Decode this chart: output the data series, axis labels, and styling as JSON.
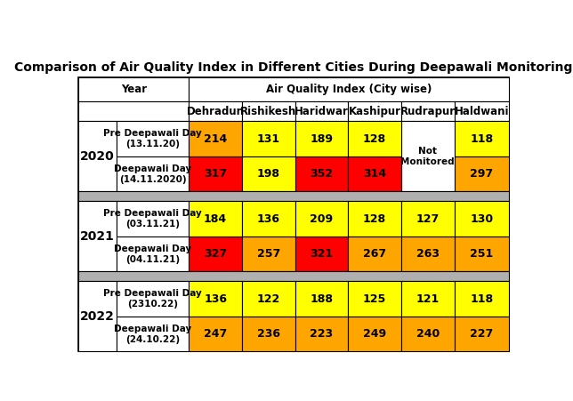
{
  "title": "Comparison of Air Quality Index in Different Cities During Deepawali Monitoring",
  "cities": [
    "Dehradun",
    "Rishikesh",
    "Haridwar",
    "Kashipur",
    "Rudrapur",
    "Haldwani"
  ],
  "rows": [
    {
      "year": "2020",
      "sub_rows": [
        {
          "label": "Pre Deepawali Day\n(13.11.20)",
          "values": [
            "214",
            "131",
            "189",
            "128",
            "",
            "118"
          ],
          "colors": [
            "#FFA500",
            "#FFFF00",
            "#FFFF00",
            "#FFFF00",
            "#FFFFFF",
            "#FFFF00"
          ]
        },
        {
          "label": "Deepawali Day\n(14.11.2020)",
          "values": [
            "317",
            "198",
            "352",
            "314",
            "",
            "297"
          ],
          "colors": [
            "#FF0000",
            "#FFFF00",
            "#FF0000",
            "#FF0000",
            "#FFFFFF",
            "#FFA500"
          ]
        }
      ]
    },
    {
      "year": "2021",
      "sub_rows": [
        {
          "label": "Pre Deepawali Day\n(03.11.21)",
          "values": [
            "184",
            "136",
            "209",
            "128",
            "127",
            "130"
          ],
          "colors": [
            "#FFFF00",
            "#FFFF00",
            "#FFFF00",
            "#FFFF00",
            "#FFFF00",
            "#FFFF00"
          ]
        },
        {
          "label": "Deepawali Day\n(04.11.21)",
          "values": [
            "327",
            "257",
            "321",
            "267",
            "263",
            "251"
          ],
          "colors": [
            "#FF0000",
            "#FFA500",
            "#FF0000",
            "#FFA500",
            "#FFA500",
            "#FFA500"
          ]
        }
      ]
    },
    {
      "year": "2022",
      "sub_rows": [
        {
          "label": "Pre Deepawali Day\n(2310.22)",
          "values": [
            "136",
            "122",
            "188",
            "125",
            "121",
            "118"
          ],
          "colors": [
            "#FFFF00",
            "#FFFF00",
            "#FFFF00",
            "#FFFF00",
            "#FFFF00",
            "#FFFF00"
          ]
        },
        {
          "label": "Deepawali Day\n(24.10.22)",
          "values": [
            "247",
            "236",
            "223",
            "249",
            "240",
            "227"
          ],
          "colors": [
            "#FFA500",
            "#FFA500",
            "#FFA500",
            "#FFA500",
            "#FFA500",
            "#FFA500"
          ]
        }
      ]
    }
  ],
  "bg_color": "#FFFFFF",
  "separator_color": "#B0B0B0",
  "title_fontsize": 10,
  "header_fontsize": 8.5,
  "label_fontsize": 7.5,
  "year_fontsize": 10,
  "cell_fontsize": 9
}
